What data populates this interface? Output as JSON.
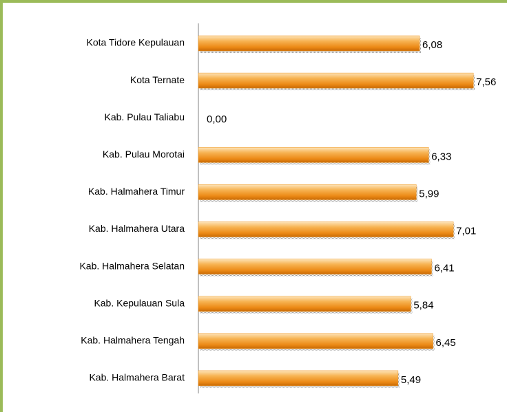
{
  "chart_data": {
    "type": "bar",
    "orientation": "horizontal",
    "categories": [
      "Kota Tidore Kepulauan",
      "Kota Ternate",
      "Kab. Pulau Taliabu",
      "Kab. Pulau Morotai",
      "Kab. Halmahera Timur",
      "Kab. Halmahera Utara",
      "Kab. Halmahera Selatan",
      "Kab. Kepulauan Sula",
      "Kab. Halmahera Tengah",
      "Kab. Halmahera Barat"
    ],
    "values": [
      6.08,
      7.56,
      0.0,
      6.33,
      5.99,
      7.01,
      6.41,
      5.84,
      6.45,
      5.49
    ],
    "value_labels": [
      "6,08",
      "7,56",
      "0,00",
      "6,33",
      "5,99",
      "7,01",
      "6,41",
      "5,84",
      "6,45",
      "5,49"
    ],
    "color": "#f0961e",
    "xlim": [
      0,
      8
    ]
  }
}
